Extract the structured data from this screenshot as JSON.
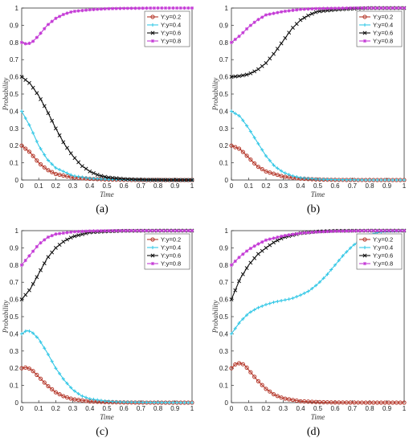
{
  "chart_data": [
    {
      "type": "line",
      "caption": "(a)",
      "xlabel": "Time",
      "ylabel": "Probability",
      "xlim": [
        0,
        1
      ],
      "ylim": [
        0,
        1
      ],
      "xticks": [
        "0",
        "0.1",
        "0.2",
        "0.3",
        "0.4",
        "0.5",
        "0.6",
        "0.7",
        "0.8",
        "0.9",
        "1"
      ],
      "yticks": [
        "0",
        "0.1",
        "0.2",
        "0.3",
        "0.4",
        "0.5",
        "0.6",
        "0.7",
        "0.8",
        "0.9",
        "1"
      ],
      "grid": false,
      "legend_position": "top-right",
      "series": [
        {
          "name": "Y:y=0.2",
          "color": "#b5382b",
          "marker": "circle",
          "x": [
            0,
            0.05,
            0.1,
            0.15,
            0.2,
            0.3,
            0.4,
            0.5,
            0.6,
            0.7,
            0.8,
            0.9,
            1
          ],
          "y": [
            0.2,
            0.16,
            0.1,
            0.06,
            0.035,
            0.015,
            0.007,
            0.003,
            0.001,
            0,
            0,
            0,
            0
          ]
        },
        {
          "name": "Y:y=0.4",
          "color": "#35c8e6",
          "marker": "plus",
          "x": [
            0,
            0.05,
            0.1,
            0.15,
            0.2,
            0.3,
            0.4,
            0.5,
            0.6,
            0.7,
            0.8,
            0.9,
            1
          ],
          "y": [
            0.4,
            0.31,
            0.2,
            0.12,
            0.07,
            0.025,
            0.01,
            0.004,
            0.002,
            0.001,
            0,
            0,
            0
          ]
        },
        {
          "name": "Y:y=0.6",
          "color": "#111111",
          "marker": "x",
          "x": [
            0,
            0.05,
            0.1,
            0.15,
            0.2,
            0.25,
            0.3,
            0.35,
            0.4,
            0.45,
            0.5,
            0.6,
            0.7,
            0.8,
            0.9,
            1
          ],
          "y": [
            0.6,
            0.56,
            0.49,
            0.4,
            0.3,
            0.21,
            0.14,
            0.085,
            0.05,
            0.028,
            0.016,
            0.006,
            0.002,
            0.001,
            0,
            0
          ]
        },
        {
          "name": "Y:y=0.8",
          "color": "#c43ad6",
          "marker": "star",
          "x": [
            0,
            0.03,
            0.06,
            0.1,
            0.15,
            0.2,
            0.25,
            0.3,
            0.4,
            0.5,
            0.6,
            0.8,
            1
          ],
          "y": [
            0.8,
            0.79,
            0.8,
            0.84,
            0.9,
            0.94,
            0.965,
            0.98,
            0.99,
            0.996,
            0.998,
            1,
            1
          ]
        }
      ]
    },
    {
      "type": "line",
      "caption": "(b)",
      "xlabel": "Time",
      "ylabel": "Probability",
      "xlim": [
        0,
        1
      ],
      "ylim": [
        0,
        1
      ],
      "xticks": [
        "0",
        "0.1",
        "0.2",
        "0.3",
        "0.4",
        "0.5",
        "0.6",
        "0.7",
        "0.8",
        "0.9",
        "1"
      ],
      "yticks": [
        "0",
        "0.1",
        "0.2",
        "0.3",
        "0.4",
        "0.5",
        "0.6",
        "0.7",
        "0.8",
        "0.9",
        "1"
      ],
      "grid": false,
      "legend_position": "top-right",
      "series": [
        {
          "name": "Y:y=0.2",
          "color": "#b5382b",
          "marker": "circle",
          "x": [
            0,
            0.05,
            0.1,
            0.15,
            0.2,
            0.3,
            0.4,
            0.5,
            0.6,
            0.8,
            1
          ],
          "y": [
            0.2,
            0.18,
            0.13,
            0.08,
            0.05,
            0.02,
            0.008,
            0.003,
            0.001,
            0,
            0
          ]
        },
        {
          "name": "Y:y=0.4",
          "color": "#35c8e6",
          "marker": "plus",
          "x": [
            0,
            0.05,
            0.1,
            0.15,
            0.2,
            0.25,
            0.3,
            0.35,
            0.4,
            0.5,
            0.6,
            0.8,
            1
          ],
          "y": [
            0.4,
            0.37,
            0.3,
            0.22,
            0.14,
            0.08,
            0.045,
            0.025,
            0.013,
            0.005,
            0.002,
            0,
            0
          ]
        },
        {
          "name": "Y:y=0.6",
          "color": "#111111",
          "marker": "x",
          "x": [
            0,
            0.05,
            0.1,
            0.15,
            0.2,
            0.25,
            0.3,
            0.35,
            0.4,
            0.45,
            0.5,
            0.6,
            0.7,
            0.8,
            1
          ],
          "y": [
            0.6,
            0.605,
            0.615,
            0.64,
            0.68,
            0.74,
            0.81,
            0.88,
            0.93,
            0.96,
            0.98,
            0.99,
            0.996,
            1,
            1
          ]
        },
        {
          "name": "Y:y=0.8",
          "color": "#c43ad6",
          "marker": "star",
          "x": [
            0,
            0.05,
            0.1,
            0.15,
            0.2,
            0.3,
            0.4,
            0.5,
            0.7,
            1
          ],
          "y": [
            0.8,
            0.84,
            0.89,
            0.93,
            0.96,
            0.98,
            0.992,
            0.997,
            1,
            1
          ]
        }
      ]
    },
    {
      "type": "line",
      "caption": "(c)",
      "xlabel": "Time",
      "ylabel": "Probability",
      "xlim": [
        0,
        1
      ],
      "ylim": [
        0,
        1
      ],
      "xticks": [
        "0",
        "0.1",
        "0.2",
        "0.3",
        "0.4",
        "0.5",
        "0.6",
        "0.7",
        "0.8",
        "0.9",
        "1"
      ],
      "yticks": [
        "0",
        "0.1",
        "0.2",
        "0.3",
        "0.4",
        "0.5",
        "0.6",
        "0.7",
        "0.8",
        "0.9",
        "1"
      ],
      "grid": false,
      "legend_position": "top-right",
      "series": [
        {
          "name": "Y:y=0.2",
          "color": "#b5382b",
          "marker": "circle",
          "x": [
            0,
            0.03,
            0.06,
            0.1,
            0.15,
            0.2,
            0.25,
            0.3,
            0.4,
            0.5,
            0.6,
            0.8,
            1
          ],
          "y": [
            0.2,
            0.205,
            0.19,
            0.15,
            0.1,
            0.06,
            0.035,
            0.02,
            0.007,
            0.003,
            0.001,
            0,
            0
          ]
        },
        {
          "name": "Y:y=0.4",
          "color": "#35c8e6",
          "marker": "plus",
          "x": [
            0,
            0.03,
            0.06,
            0.1,
            0.15,
            0.2,
            0.25,
            0.3,
            0.35,
            0.4,
            0.5,
            0.6,
            0.8,
            1
          ],
          "y": [
            0.4,
            0.42,
            0.41,
            0.37,
            0.29,
            0.2,
            0.13,
            0.075,
            0.04,
            0.022,
            0.008,
            0.003,
            0.001,
            0
          ]
        },
        {
          "name": "Y:y=0.6",
          "color": "#111111",
          "marker": "x",
          "x": [
            0,
            0.05,
            0.1,
            0.15,
            0.2,
            0.25,
            0.3,
            0.4,
            0.5,
            0.6,
            0.8,
            1
          ],
          "y": [
            0.6,
            0.66,
            0.75,
            0.84,
            0.9,
            0.94,
            0.965,
            0.99,
            0.996,
            0.999,
            1,
            1
          ]
        },
        {
          "name": "Y:y=0.8",
          "color": "#c43ad6",
          "marker": "star",
          "x": [
            0,
            0.05,
            0.1,
            0.15,
            0.2,
            0.3,
            0.4,
            0.6,
            0.8,
            1
          ],
          "y": [
            0.8,
            0.86,
            0.92,
            0.96,
            0.98,
            0.993,
            0.998,
            1,
            1,
            1
          ]
        }
      ]
    },
    {
      "type": "line",
      "caption": "(d)",
      "xlabel": "Time",
      "ylabel": "Probability",
      "xlim": [
        0,
        1
      ],
      "ylim": [
        0,
        1
      ],
      "xticks": [
        "0",
        "0.1",
        "0.2",
        "0.3",
        "0.4",
        "0.5",
        "0.6",
        "0.7",
        "0.8",
        "0.9",
        "1"
      ],
      "yticks": [
        "0",
        "0.1",
        "0.2",
        "0.3",
        "0.4",
        "0.5",
        "0.6",
        "0.7",
        "0.8",
        "0.9",
        "1"
      ],
      "grid": false,
      "legend_position": "top-right",
      "series": [
        {
          "name": "Y:y=0.2",
          "color": "#b5382b",
          "marker": "circle",
          "x": [
            0,
            0.025,
            0.05,
            0.075,
            0.1,
            0.15,
            0.2,
            0.25,
            0.3,
            0.4,
            0.5,
            0.6,
            0.8,
            1
          ],
          "y": [
            0.2,
            0.225,
            0.23,
            0.22,
            0.19,
            0.13,
            0.08,
            0.045,
            0.025,
            0.008,
            0.003,
            0.001,
            0,
            0
          ]
        },
        {
          "name": "Y:y=0.4",
          "color": "#35c8e6",
          "marker": "plus",
          "x": [
            0,
            0.05,
            0.1,
            0.15,
            0.2,
            0.25,
            0.3,
            0.35,
            0.4,
            0.45,
            0.5,
            0.55,
            0.6,
            0.65,
            0.7,
            0.75,
            0.8,
            0.85,
            0.9,
            1
          ],
          "y": [
            0.4,
            0.47,
            0.52,
            0.55,
            0.57,
            0.585,
            0.595,
            0.605,
            0.625,
            0.65,
            0.69,
            0.74,
            0.8,
            0.86,
            0.91,
            0.95,
            0.975,
            0.99,
            0.996,
            1
          ]
        },
        {
          "name": "Y:y=0.6",
          "color": "#111111",
          "marker": "x",
          "x": [
            0,
            0.05,
            0.1,
            0.15,
            0.2,
            0.25,
            0.3,
            0.4,
            0.5,
            0.6,
            0.8,
            1
          ],
          "y": [
            0.6,
            0.72,
            0.8,
            0.86,
            0.9,
            0.935,
            0.96,
            0.985,
            0.995,
            0.999,
            1,
            1
          ]
        },
        {
          "name": "Y:y=0.8",
          "color": "#c43ad6",
          "marker": "star",
          "x": [
            0,
            0.05,
            0.1,
            0.15,
            0.2,
            0.3,
            0.4,
            0.5,
            0.6,
            0.8,
            1
          ],
          "y": [
            0.8,
            0.85,
            0.89,
            0.92,
            0.945,
            0.97,
            0.985,
            0.993,
            0.997,
            1,
            1
          ]
        }
      ]
    }
  ]
}
